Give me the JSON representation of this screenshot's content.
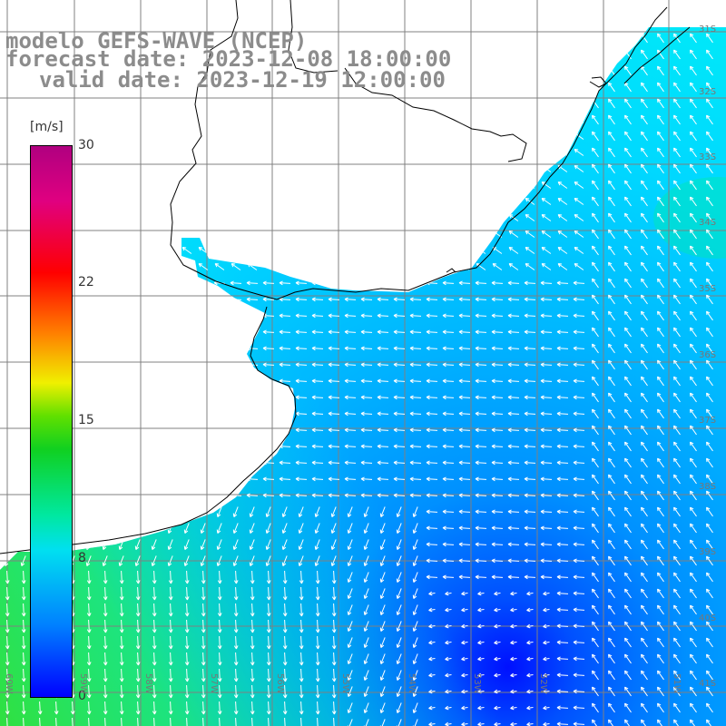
{
  "title": {
    "line1": "modelo GEFS-WAVE (NCEP)",
    "line2": "forecast date: 2023-12-08 18:00:00",
    "line3": "valid date: 2023-12-19 12:00:00"
  },
  "colorbar": {
    "units": "[m/s]",
    "ticks": [
      "30",
      "22",
      "15",
      "8",
      "0"
    ],
    "colors": [
      "#0000ff",
      "#0080ff",
      "#00e0f0",
      "#00e8a0",
      "#10d020",
      "#60e000",
      "#f0f000",
      "#ff8000",
      "#ff0000",
      "#e00080",
      "#b00080"
    ]
  },
  "axes": {
    "lon_labels": [
      "60W",
      "59W",
      "58W",
      "57W",
      "56W",
      "55W",
      "54W",
      "53W",
      "52W",
      "51W"
    ],
    "lat_labels": [
      "31S",
      "32S",
      "33S",
      "34S",
      "35S",
      "36S",
      "37S",
      "38S",
      "39S",
      "40S",
      "41S"
    ]
  },
  "map": {
    "land_color": "#ffffff",
    "coast_color": "#000000",
    "grid_color": "#808080",
    "arrow_color": "#ffffff"
  }
}
